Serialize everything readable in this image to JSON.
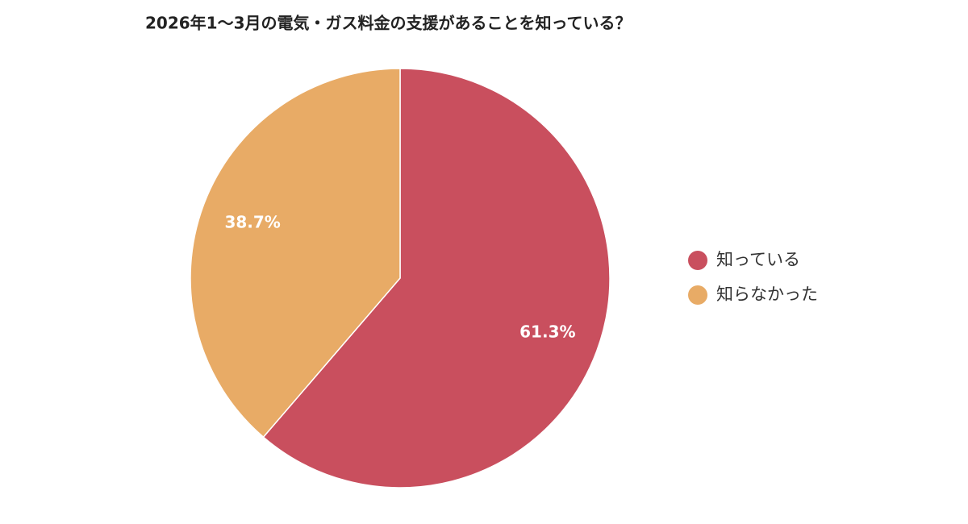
{
  "chart_data": {
    "type": "pie",
    "title": "2026年1〜3月の電気・ガス料金の支援があることを知っている？",
    "categories": [
      "知っている",
      "知らなかった"
    ],
    "values": [
      61.3,
      38.7
    ],
    "value_labels": [
      "61.3%",
      "38.7%"
    ],
    "colors": [
      "#c94f5e",
      "#e8ab66"
    ],
    "legend": "right"
  }
}
